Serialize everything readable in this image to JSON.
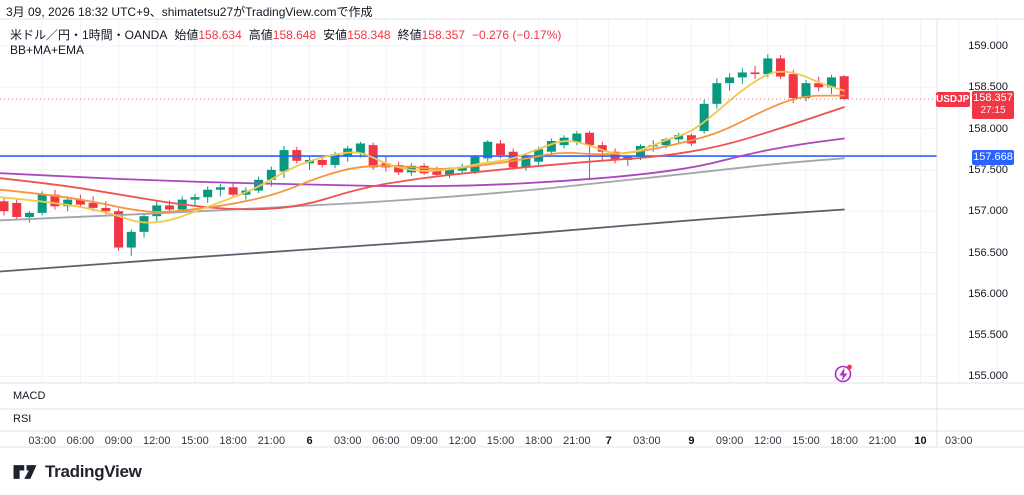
{
  "attribution": "3月 09, 2026 18:32 UTC+9、shimatetsu27がTradingView.comで作成",
  "legend": {
    "title": "米ドル／円・1時間・OANDA",
    "open_label": "始値",
    "open": "158.634",
    "high_label": "高値",
    "high": "158.648",
    "low_label": "安値",
    "low": "158.348",
    "close_label": "終値",
    "close": "158.357",
    "change": "−0.276 (−0.17%)",
    "indicator": "BB+MA+EMA"
  },
  "badges": {
    "symbol": "USDJPY",
    "last_price": "158.357",
    "countdown": "27:15",
    "level_price": "157.668"
  },
  "panels": {
    "macd_label": "MACD",
    "rsi_label": "RSI"
  },
  "logo_text": "TradingView",
  "price_axis": {
    "labels": [
      {
        "text": "159.000",
        "price": 159.0
      },
      {
        "text": "158.500",
        "price": 158.5
      },
      {
        "text": "158.000",
        "price": 158.0
      },
      {
        "text": "157.500",
        "price": 157.5
      },
      {
        "text": "157.000",
        "price": 157.0
      },
      {
        "text": "156.500",
        "price": 156.5
      },
      {
        "text": "156.000",
        "price": 156.0
      },
      {
        "text": "155.500",
        "price": 155.5
      },
      {
        "text": "155.000",
        "price": 155.0
      }
    ]
  },
  "time_axis": {
    "labels": [
      {
        "text": "03:00",
        "i": 3
      },
      {
        "text": "06:00",
        "i": 6
      },
      {
        "text": "09:00",
        "i": 9
      },
      {
        "text": "12:00",
        "i": 12
      },
      {
        "text": "15:00",
        "i": 15
      },
      {
        "text": "18:00",
        "i": 18
      },
      {
        "text": "21:00",
        "i": 21
      },
      {
        "text": "6",
        "i": 24,
        "bold": true
      },
      {
        "text": "03:00",
        "i": 27
      },
      {
        "text": "06:00",
        "i": 30
      },
      {
        "text": "09:00",
        "i": 33
      },
      {
        "text": "12:00",
        "i": 36
      },
      {
        "text": "15:00",
        "i": 39
      },
      {
        "text": "18:00",
        "i": 42
      },
      {
        "text": "21:00",
        "i": 45
      },
      {
        "text": "7",
        "i": 47.5,
        "bold": true
      },
      {
        "text": "03:00",
        "i": 50.5
      },
      {
        "text": "9",
        "i": 54,
        "bold": true
      },
      {
        "text": "09:00",
        "i": 57
      },
      {
        "text": "12:00",
        "i": 60
      },
      {
        "text": "15:00",
        "i": 63
      },
      {
        "text": "18:00",
        "i": 66
      },
      {
        "text": "21:00",
        "i": 69
      },
      {
        "text": "10",
        "i": 72,
        "bold": true
      },
      {
        "text": "03:00",
        "i": 75
      }
    ],
    "extra_gridline_indices": [
      78
    ]
  },
  "chart_data": {
    "type": "candlestick",
    "symbol": "USDJPY",
    "exchange": "OANDA",
    "timeframe": "1時間",
    "ylim": [
      154.78,
      159.28
    ],
    "colors": {
      "up": "#089981",
      "down": "#f23645",
      "grid": "#f0f3fa",
      "separator": "#e0e3eb",
      "hline_blue": "#2962ff",
      "last_price": "#f23645"
    },
    "hline": {
      "price": 157.668,
      "color": "#2962ff"
    },
    "last_price_line": {
      "price": 158.357,
      "color": "#f23645",
      "style": "dotted"
    },
    "candles": {
      "columns": [
        "time",
        "open",
        "high",
        "low",
        "close"
      ],
      "rows": [
        [
          "3/5 00:00",
          157.12,
          157.16,
          156.95,
          157.0
        ],
        [
          "3/5 01:00",
          157.1,
          157.14,
          156.9,
          156.93
        ],
        [
          "3/5 02:00",
          156.93,
          157.0,
          156.86,
          156.98
        ],
        [
          "3/5 03:00",
          156.98,
          157.24,
          156.95,
          157.2
        ],
        [
          "3/5 04:00",
          157.2,
          157.26,
          157.02,
          157.06
        ],
        [
          "3/5 05:00",
          157.06,
          157.18,
          157.0,
          157.14
        ],
        [
          "3/5 06:00",
          157.14,
          157.2,
          157.04,
          157.08
        ],
        [
          "3/5 07:00",
          157.1,
          157.18,
          157.0,
          157.04
        ],
        [
          "3/5 08:00",
          157.04,
          157.12,
          156.96,
          157.0
        ],
        [
          "3/5 09:00",
          157.0,
          157.03,
          156.52,
          156.56
        ],
        [
          "3/5 10:00",
          156.56,
          156.78,
          156.46,
          156.75
        ],
        [
          "3/5 11:00",
          156.75,
          156.98,
          156.68,
          156.94
        ],
        [
          "3/5 12:00",
          156.94,
          157.12,
          156.88,
          157.07
        ],
        [
          "3/5 13:00",
          157.07,
          157.13,
          156.97,
          157.02
        ],
        [
          "3/5 14:00",
          157.02,
          157.18,
          156.98,
          157.14
        ],
        [
          "3/5 15:00",
          157.14,
          157.21,
          157.06,
          157.17
        ],
        [
          "3/5 16:00",
          157.17,
          157.3,
          157.1,
          157.26
        ],
        [
          "3/5 17:00",
          157.26,
          157.33,
          157.18,
          157.29
        ],
        [
          "3/5 18:00",
          157.29,
          157.35,
          157.16,
          157.2
        ],
        [
          "3/5 19:00",
          157.2,
          157.29,
          157.14,
          157.25
        ],
        [
          "3/5 20:00",
          157.25,
          157.42,
          157.22,
          157.38
        ],
        [
          "3/5 21:00",
          157.38,
          157.54,
          157.3,
          157.5
        ],
        [
          "3/5 22:00",
          157.48,
          157.79,
          157.4,
          157.74
        ],
        [
          "3/5 23:00",
          157.74,
          157.78,
          157.58,
          157.61
        ],
        [
          "3/6 00:00",
          157.58,
          157.66,
          157.5,
          157.62
        ],
        [
          "3/6 01:00",
          157.62,
          157.67,
          157.53,
          157.56
        ],
        [
          "3/6 02:00",
          157.56,
          157.72,
          157.52,
          157.69
        ],
        [
          "3/6 03:00",
          157.66,
          157.79,
          157.6,
          157.76
        ],
        [
          "3/6 04:00",
          157.7,
          157.84,
          157.65,
          157.82
        ],
        [
          "3/6 05:00",
          157.8,
          157.83,
          157.5,
          157.53
        ],
        [
          "3/6 06:00",
          157.58,
          157.66,
          157.48,
          157.53
        ],
        [
          "3/6 07:00",
          157.56,
          157.6,
          157.44,
          157.47
        ],
        [
          "3/6 08:00",
          157.47,
          157.58,
          157.43,
          157.55
        ],
        [
          "3/6 09:00",
          157.55,
          157.58,
          157.44,
          157.46
        ],
        [
          "3/6 10:00",
          157.49,
          157.54,
          157.41,
          157.44
        ],
        [
          "3/6 11:00",
          157.44,
          157.53,
          157.4,
          157.51
        ],
        [
          "3/6 12:00",
          157.49,
          157.57,
          157.45,
          157.54
        ],
        [
          "3/6 13:00",
          157.48,
          157.68,
          157.45,
          157.66
        ],
        [
          "3/6 14:00",
          157.64,
          157.86,
          157.6,
          157.84
        ],
        [
          "3/6 15:00",
          157.82,
          157.86,
          157.64,
          157.68
        ],
        [
          "3/6 16:00",
          157.72,
          157.76,
          157.5,
          157.53
        ],
        [
          "3/6 17:00",
          157.53,
          157.7,
          157.49,
          157.67
        ],
        [
          "3/6 18:00",
          157.6,
          157.78,
          157.56,
          157.75
        ],
        [
          "3/6 19:00",
          157.72,
          157.88,
          157.68,
          157.85
        ],
        [
          "3/6 20:00",
          157.8,
          157.92,
          157.76,
          157.89
        ],
        [
          "3/6 21:00",
          157.84,
          157.97,
          157.8,
          157.94
        ],
        [
          "3/6 22:00",
          157.95,
          157.97,
          157.4,
          157.8
        ],
        [
          "3/6 23:00",
          157.8,
          157.84,
          157.62,
          157.72
        ],
        [
          "3/7 00:00",
          157.72,
          157.76,
          157.58,
          157.62
        ],
        [
          "3/7 01:00",
          157.62,
          157.68,
          157.55,
          157.66
        ],
        [
          "3/7 02:00",
          157.66,
          157.81,
          157.62,
          157.79
        ],
        [
          "3/7 03:00",
          157.79,
          157.86,
          157.72,
          157.8
        ],
        [
          "3/7 04:00",
          157.8,
          157.89,
          157.76,
          157.87
        ],
        [
          "3/7 05:00",
          157.87,
          157.95,
          157.82,
          157.92
        ],
        [
          "3/7 06:00",
          157.92,
          157.94,
          157.79,
          157.82
        ],
        [
          "3/9 07:00",
          157.97,
          158.35,
          157.94,
          158.3
        ],
        [
          "3/9 08:00",
          158.3,
          158.61,
          158.24,
          158.55
        ],
        [
          "3/9 09:00",
          158.55,
          158.67,
          158.46,
          158.62
        ],
        [
          "3/9 10:00",
          158.62,
          158.73,
          158.54,
          158.68
        ],
        [
          "3/9 11:00",
          158.68,
          158.76,
          158.6,
          158.66
        ],
        [
          "3/9 12:00",
          158.66,
          158.9,
          158.62,
          158.85
        ],
        [
          "3/9 13:00",
          158.85,
          158.89,
          158.6,
          158.63
        ],
        [
          "3/9 14:00",
          158.66,
          158.71,
          158.31,
          158.37
        ],
        [
          "3/9 15:00",
          158.37,
          158.59,
          158.33,
          158.55
        ],
        [
          "3/9 16:00",
          158.55,
          158.63,
          158.45,
          158.5
        ],
        [
          "3/9 17:00",
          158.5,
          158.65,
          158.42,
          158.62
        ],
        [
          "3/9 18:00",
          158.634,
          158.648,
          158.348,
          158.357
        ]
      ]
    },
    "overlays": [
      {
        "name": "ema-fast-yellow",
        "color": "#f2c94c",
        "points": [
          [
            0,
            157.17
          ],
          [
            60,
            157.1
          ],
          [
            110,
            156.98
          ],
          [
            140,
            156.85
          ],
          [
            170,
            156.88
          ],
          [
            200,
            157.02
          ],
          [
            230,
            157.15
          ],
          [
            260,
            157.3
          ],
          [
            290,
            157.52
          ],
          [
            320,
            157.65
          ],
          [
            350,
            157.72
          ],
          [
            365,
            157.7
          ],
          [
            390,
            157.55
          ],
          [
            420,
            157.48
          ],
          [
            450,
            157.5
          ],
          [
            480,
            157.58
          ],
          [
            510,
            157.62
          ],
          [
            540,
            157.76
          ],
          [
            565,
            157.87
          ],
          [
            590,
            157.8
          ],
          [
            615,
            157.68
          ],
          [
            640,
            157.73
          ],
          [
            665,
            157.86
          ],
          [
            690,
            157.95
          ],
          [
            715,
            158.18
          ],
          [
            740,
            158.45
          ],
          [
            765,
            158.65
          ],
          [
            780,
            158.7
          ],
          [
            800,
            158.66
          ],
          [
            820,
            158.55
          ],
          [
            844,
            158.46
          ]
        ]
      },
      {
        "name": "ema-slow-orange",
        "color": "#f79540",
        "points": [
          [
            0,
            157.26
          ],
          [
            50,
            157.2
          ],
          [
            100,
            157.1
          ],
          [
            130,
            157.02
          ],
          [
            160,
            156.98
          ],
          [
            200,
            157.03
          ],
          [
            240,
            157.1
          ],
          [
            280,
            157.22
          ],
          [
            320,
            157.42
          ],
          [
            360,
            157.55
          ],
          [
            400,
            157.55
          ],
          [
            440,
            157.5
          ],
          [
            480,
            157.55
          ],
          [
            520,
            157.62
          ],
          [
            560,
            157.72
          ],
          [
            600,
            157.68
          ],
          [
            640,
            157.72
          ],
          [
            680,
            157.82
          ],
          [
            720,
            157.95
          ],
          [
            760,
            158.2
          ],
          [
            800,
            158.4
          ],
          [
            844,
            158.4
          ]
        ]
      },
      {
        "name": "ma-red",
        "color": "#ef5350",
        "points": [
          [
            0,
            157.4
          ],
          [
            60,
            157.32
          ],
          [
            120,
            157.2
          ],
          [
            180,
            157.08
          ],
          [
            240,
            157.01
          ],
          [
            300,
            157.05
          ],
          [
            360,
            157.28
          ],
          [
            420,
            157.4
          ],
          [
            480,
            157.48
          ],
          [
            540,
            157.55
          ],
          [
            600,
            157.61
          ],
          [
            660,
            157.66
          ],
          [
            720,
            157.78
          ],
          [
            780,
            158.0
          ],
          [
            844,
            158.26
          ]
        ]
      },
      {
        "name": "ma-purple",
        "color": "#ab47bc",
        "points": [
          [
            0,
            157.46
          ],
          [
            80,
            157.41
          ],
          [
            160,
            157.37
          ],
          [
            240,
            157.34
          ],
          [
            320,
            157.32
          ],
          [
            400,
            157.3
          ],
          [
            480,
            157.31
          ],
          [
            560,
            157.36
          ],
          [
            640,
            157.44
          ],
          [
            700,
            157.54
          ],
          [
            750,
            157.7
          ],
          [
            800,
            157.81
          ],
          [
            844,
            157.88
          ]
        ]
      },
      {
        "name": "ma-gray",
        "color": "#a3a6af",
        "points": [
          [
            0,
            156.89
          ],
          [
            100,
            156.94
          ],
          [
            200,
            157.0
          ],
          [
            300,
            157.06
          ],
          [
            400,
            157.13
          ],
          [
            500,
            157.22
          ],
          [
            600,
            157.34
          ],
          [
            700,
            157.47
          ],
          [
            780,
            157.58
          ],
          [
            844,
            157.64
          ]
        ]
      },
      {
        "name": "ma-200-dark",
        "color": "#5d616b",
        "points": [
          [
            0,
            156.27
          ],
          [
            120,
            156.38
          ],
          [
            240,
            156.48
          ],
          [
            360,
            156.58
          ],
          [
            480,
            156.68
          ],
          [
            600,
            156.8
          ],
          [
            720,
            156.92
          ],
          [
            844,
            157.02
          ]
        ]
      }
    ]
  }
}
